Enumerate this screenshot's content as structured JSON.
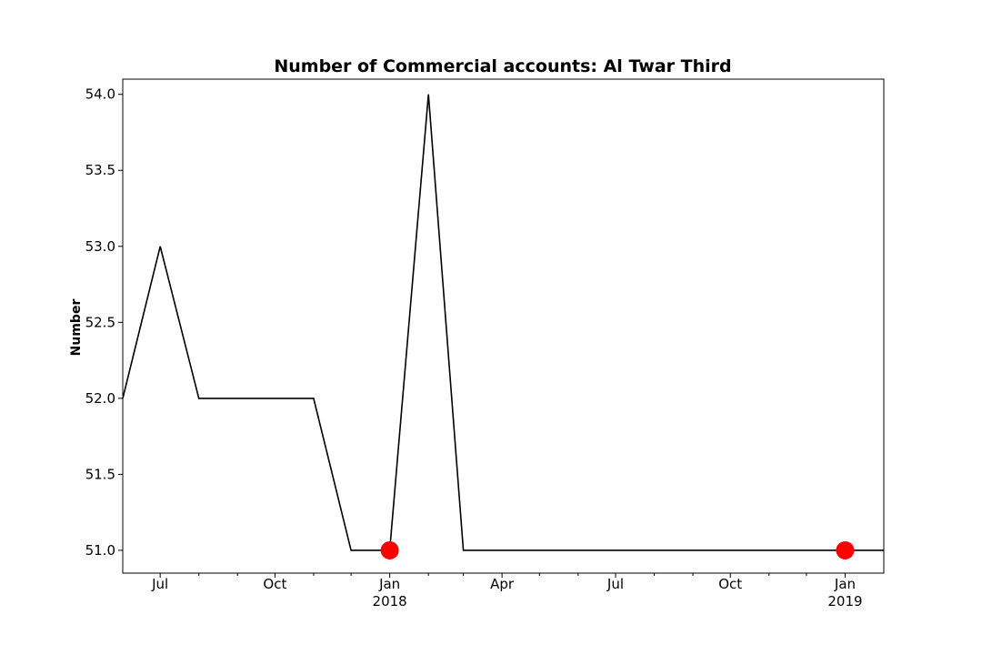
{
  "chart_data": {
    "type": "line",
    "title": "Number of Commercial accounts: Al Twar Third",
    "xlabel": "",
    "ylabel": "Number",
    "xlim": [
      "2017-06-01",
      "2019-02-01"
    ],
    "ylim": [
      50.85,
      54.1
    ],
    "yticks": [
      "51.0",
      "51.5",
      "52.0",
      "52.5",
      "53.0",
      "53.5",
      "54.0"
    ],
    "xticks_major": [
      {
        "date": "2017-07-01",
        "label": "Jul",
        "sub": ""
      },
      {
        "date": "2017-10-01",
        "label": "Oct",
        "sub": ""
      },
      {
        "date": "2018-01-01",
        "label": "Jan",
        "sub": "2018"
      },
      {
        "date": "2018-04-01",
        "label": "Apr",
        "sub": ""
      },
      {
        "date": "2018-07-01",
        "label": "Jul",
        "sub": ""
      },
      {
        "date": "2018-10-01",
        "label": "Oct",
        "sub": ""
      },
      {
        "date": "2019-01-01",
        "label": "Jan",
        "sub": "2019"
      }
    ],
    "xticks_minor": [
      "2017-08-01",
      "2017-09-01",
      "2017-11-01",
      "2017-12-01",
      "2018-02-01",
      "2018-03-01",
      "2018-05-01",
      "2018-06-01",
      "2018-08-01",
      "2018-09-01",
      "2018-11-01",
      "2018-12-01"
    ],
    "grid": false,
    "series": [
      {
        "color": "#000000",
        "x": [
          "2017-06-01",
          "2017-07-01",
          "2017-08-01",
          "2017-09-01",
          "2017-10-01",
          "2017-11-01",
          "2017-12-01",
          "2018-01-01",
          "2018-02-01",
          "2018-03-01",
          "2018-04-01",
          "2018-05-01",
          "2018-06-01",
          "2018-07-01",
          "2018-08-01",
          "2018-09-01",
          "2018-10-01",
          "2018-11-01",
          "2018-12-01",
          "2019-01-01",
          "2019-02-01"
        ],
        "y": [
          52,
          53,
          52,
          52,
          52,
          52,
          51,
          51,
          54,
          51,
          51,
          51,
          51,
          51,
          51,
          51,
          51,
          51,
          51,
          51,
          51
        ]
      }
    ],
    "markers": {
      "color": "#ff0000",
      "points": [
        {
          "x": "2018-01-01",
          "y": 51
        },
        {
          "x": "2019-01-01",
          "y": 51
        }
      ]
    }
  }
}
